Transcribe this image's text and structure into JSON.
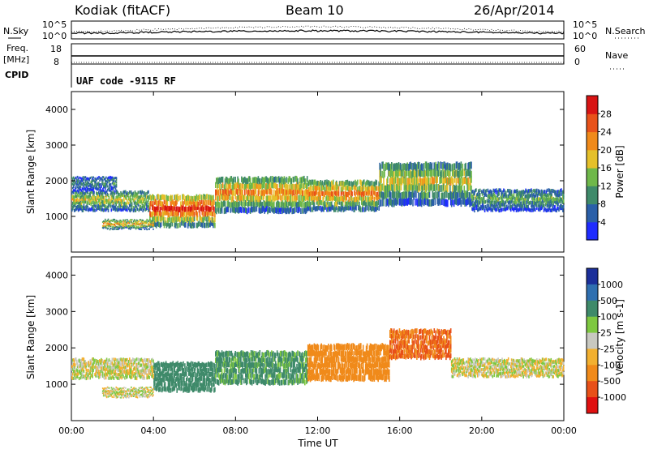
{
  "header": {
    "site": "Kodiak (fitACF)",
    "beam": "Beam 10",
    "date": "26/Apr/2014"
  },
  "strip_labels": {
    "nsky": "N.Sky",
    "nsky_top": "10^5",
    "nsky_bottom": "10^0",
    "nsearch": "N.Search",
    "nsearch_top": "10^5",
    "nsearch_bottom": "10^0",
    "freq_line1": "Freq.",
    "freq_line2": "[MHz]",
    "freq_top": "18",
    "freq_bottom": "8",
    "nave": "Nave",
    "nave_top": "60",
    "nave_bottom": "0",
    "cpid": "CPID",
    "cpid_text": "UAF code -9115 RF"
  },
  "colors": {
    "power_scale": [
      "#1f2cff",
      "#2a5fa8",
      "#3f8a6a",
      "#6fb84a",
      "#e5c02a",
      "#f08a1a",
      "#e8521a",
      "#d81414"
    ],
    "velocity_scale": [
      "#1b2f9a",
      "#2f6fb0",
      "#3f8a6a",
      "#7ec840",
      "#c8c8c0",
      "#f2b030",
      "#f08a1a",
      "#e85018",
      "#e01010"
    ]
  },
  "chart_data": [
    {
      "type": "heatmap",
      "name": "power",
      "ylabel": "Slant Range [km]",
      "xlabel": "",
      "ylim": [
        0,
        4500
      ],
      "yticks": [
        "1000",
        "2000",
        "3000",
        "4000"
      ],
      "xticks": [
        "00:00",
        "04:00",
        "08:00",
        "12:00",
        "16:00",
        "20:00",
        "00:00"
      ],
      "colorbar_label": "Power [dB]",
      "colorbar_ticks": [
        "4",
        "8",
        "12",
        "16",
        "20",
        "24",
        "28"
      ],
      "bands": [
        {
          "t0": 0.0,
          "t1": 3.8,
          "lo": 1150,
          "hi": 1700,
          "level": 0.55
        },
        {
          "t0": 0.0,
          "t1": 2.2,
          "lo": 1700,
          "hi": 2100,
          "level": 0.3
        },
        {
          "t0": 3.8,
          "t1": 7.0,
          "lo": 700,
          "hi": 1600,
          "level": 0.9
        },
        {
          "t0": 7.0,
          "t1": 11.5,
          "lo": 1100,
          "hi": 2100,
          "level": 0.7
        },
        {
          "t0": 11.5,
          "t1": 15.0,
          "lo": 1150,
          "hi": 2000,
          "level": 0.75
        },
        {
          "t0": 15.0,
          "t1": 19.5,
          "lo": 1300,
          "hi": 2500,
          "level": 0.55
        },
        {
          "t0": 19.5,
          "t1": 24.0,
          "lo": 1150,
          "hi": 1750,
          "level": 0.4
        },
        {
          "t0": 1.5,
          "t1": 4.0,
          "lo": 650,
          "hi": 900,
          "level": 0.7
        }
      ]
    },
    {
      "type": "heatmap",
      "name": "velocity",
      "ylabel": "Slant Range [km]",
      "xlabel": "Time UT",
      "ylim": [
        0,
        4500
      ],
      "yticks": [
        "1000",
        "2000",
        "3000",
        "4000"
      ],
      "xticks": [
        "00:00",
        "04:00",
        "08:00",
        "12:00",
        "16:00",
        "20:00",
        "00:00"
      ],
      "colorbar_label": "Velocity [m s-1]",
      "colorbar_ticks": [
        "1000",
        "500",
        "100",
        "25",
        "-25",
        "-100",
        "-500",
        "-1000"
      ],
      "bands": [
        {
          "t0": 0.0,
          "t1": 4.0,
          "lo": 1150,
          "hi": 1700,
          "vel": 0
        },
        {
          "t0": 4.0,
          "t1": 7.0,
          "lo": 800,
          "hi": 1600,
          "vel": 200
        },
        {
          "t0": 7.0,
          "t1": 11.5,
          "lo": 1000,
          "hi": 1900,
          "vel": 150
        },
        {
          "t0": 11.5,
          "t1": 15.5,
          "lo": 1100,
          "hi": 2100,
          "vel": -250
        },
        {
          "t0": 15.5,
          "t1": 18.5,
          "lo": 1700,
          "hi": 2500,
          "vel": -500
        },
        {
          "t0": 18.5,
          "t1": 24.0,
          "lo": 1200,
          "hi": 1700,
          "vel": 0
        },
        {
          "t0": 1.5,
          "t1": 4.0,
          "lo": 650,
          "hi": 900,
          "vel": 0
        }
      ]
    }
  ]
}
